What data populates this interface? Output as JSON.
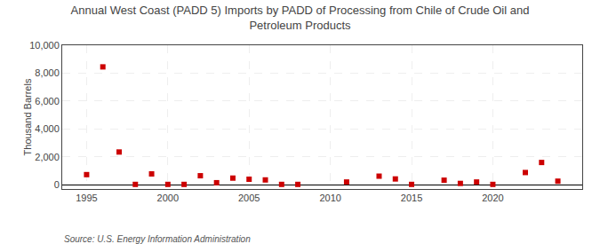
{
  "chart_data": {
    "type": "scatter",
    "title": "Annual West Coast (PADD 5) Imports by PADD of Processing from Chile of Crude Oil and\nPetroleum Products",
    "ylabel": "Thousand Barrels",
    "annotations": [
      "Source: U.S. Energy Information Administration"
    ],
    "x": [
      1995,
      1996,
      1997,
      1998,
      1999,
      2000,
      2001,
      2002,
      2003,
      2004,
      2005,
      2006,
      2007,
      2008,
      2011,
      2013,
      2014,
      2015,
      2017,
      2018,
      2019,
      2020,
      2022,
      2023,
      2024
    ],
    "values": [
      730,
      8450,
      2350,
      30,
      780,
      30,
      30,
      650,
      150,
      480,
      400,
      350,
      30,
      30,
      200,
      620,
      420,
      30,
      330,
      100,
      200,
      30,
      880,
      1600,
      260
    ],
    "color": "#cc0000",
    "marker": "square",
    "xlim": [
      1993.5,
      2025.5
    ],
    "ylim": [
      -300,
      10000
    ],
    "xticks": [
      1995,
      2000,
      2005,
      2010,
      2015,
      2020
    ],
    "yticks": [
      0,
      {
        "value": 2000,
        "label": "2,000"
      },
      {
        "value": 4000,
        "label": "4,000"
      },
      {
        "value": 6000,
        "label": "6,000"
      },
      {
        "value": 8000,
        "label": "8,000"
      },
      {
        "value": 10000,
        "label": "10,000"
      }
    ],
    "grid": true
  }
}
